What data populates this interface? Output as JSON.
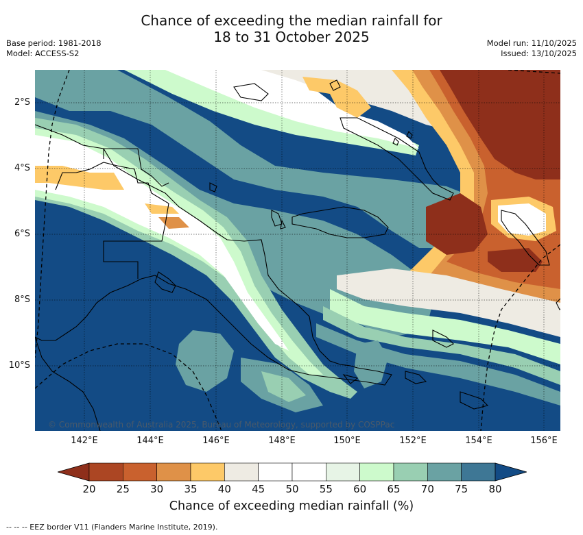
{
  "title": {
    "line1": "Chance of exceeding the median rainfall for",
    "line2": "18 to 31 October 2025"
  },
  "meta_left": {
    "base_period": "Base period: 1981-2018",
    "model": "Model: ACCESS-S2"
  },
  "meta_right": {
    "model_run": "Model run: 11/10/2025",
    "issued": "Issued: 13/10/2025"
  },
  "map": {
    "lat_labels": [
      "2°S",
      "4°S",
      "6°S",
      "8°S",
      "10°S"
    ],
    "lon_labels": [
      "142°E",
      "144°E",
      "146°E",
      "148°E",
      "150°E",
      "152°E",
      "154°E",
      "156°E"
    ],
    "copyright": "© Commonwealth of Australia 2025, Bureau of Meteorology, supported by COSPPac"
  },
  "colorbar": {
    "label": "Chance of exceeding median rainfall (%)",
    "ticks": [
      "20",
      "25",
      "30",
      "35",
      "40",
      "45",
      "50",
      "55",
      "60",
      "65",
      "70",
      "75",
      "80"
    ],
    "colors": [
      "#8e2f1b",
      "#ac4623",
      "#c9612e",
      "#df9148",
      "#fdc968",
      "#eeebe3",
      "#ffffff",
      "#ffffff",
      "#e7f4e6",
      "#cdfacc",
      "#99cfb2",
      "#6aa2a3",
      "#3e7795",
      "#134b85"
    ]
  },
  "footer": {
    "eez_note": "-- -- -- EEZ border V11 (Flanders Marine Institute, 2019)."
  }
}
